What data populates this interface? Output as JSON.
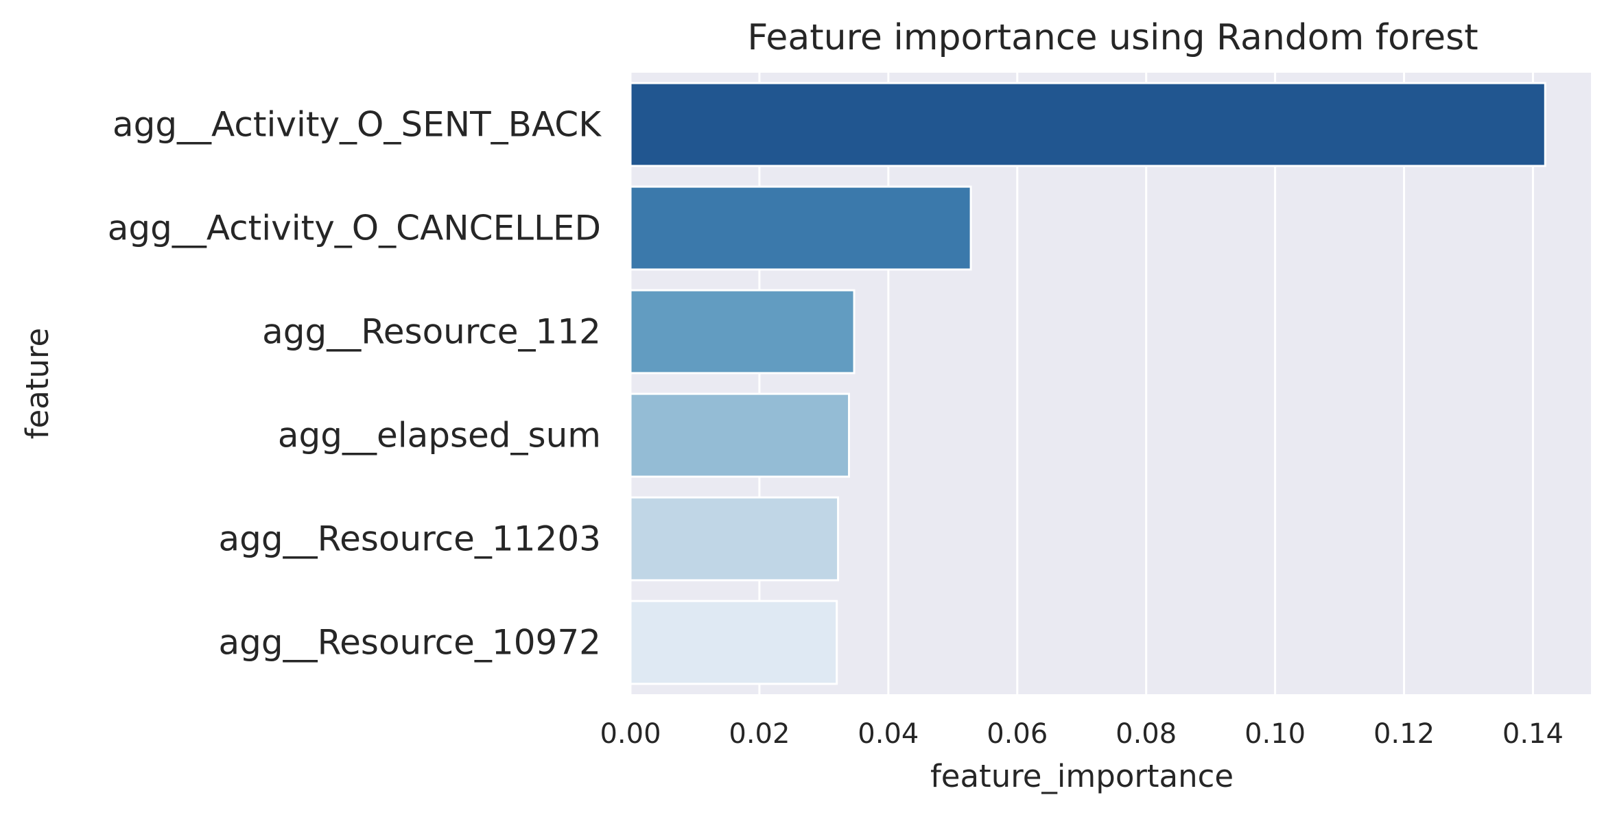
{
  "chart_data": {
    "type": "bar",
    "orientation": "horizontal",
    "title": "Feature importance using Random forest",
    "xlabel": "feature_importance",
    "ylabel": "feature",
    "categories": [
      "agg__Activity_O_SENT_BACK",
      "agg__Activity_O_CANCELLED",
      "agg__Resource_112",
      "agg__elapsed_sum",
      "agg__Resource_11203",
      "agg__Resource_10972"
    ],
    "values": [
      0.1419,
      0.0528,
      0.0347,
      0.0339,
      0.0322,
      0.032
    ],
    "xlim": [
      0,
      0.149
    ],
    "xticks": [
      0.0,
      0.02,
      0.04,
      0.06,
      0.08,
      0.1,
      0.12,
      0.14
    ],
    "xtick_labels": [
      "0.00",
      "0.02",
      "0.04",
      "0.06",
      "0.08",
      "0.10",
      "0.12",
      "0.14"
    ],
    "colors": [
      "#215690",
      "#3b79ab",
      "#629cc1",
      "#94bcd5",
      "#c0d6e6",
      "#dfe9f3"
    ],
    "grid": true,
    "background": "#eaeaf2",
    "grid_color": "#ffffff"
  }
}
